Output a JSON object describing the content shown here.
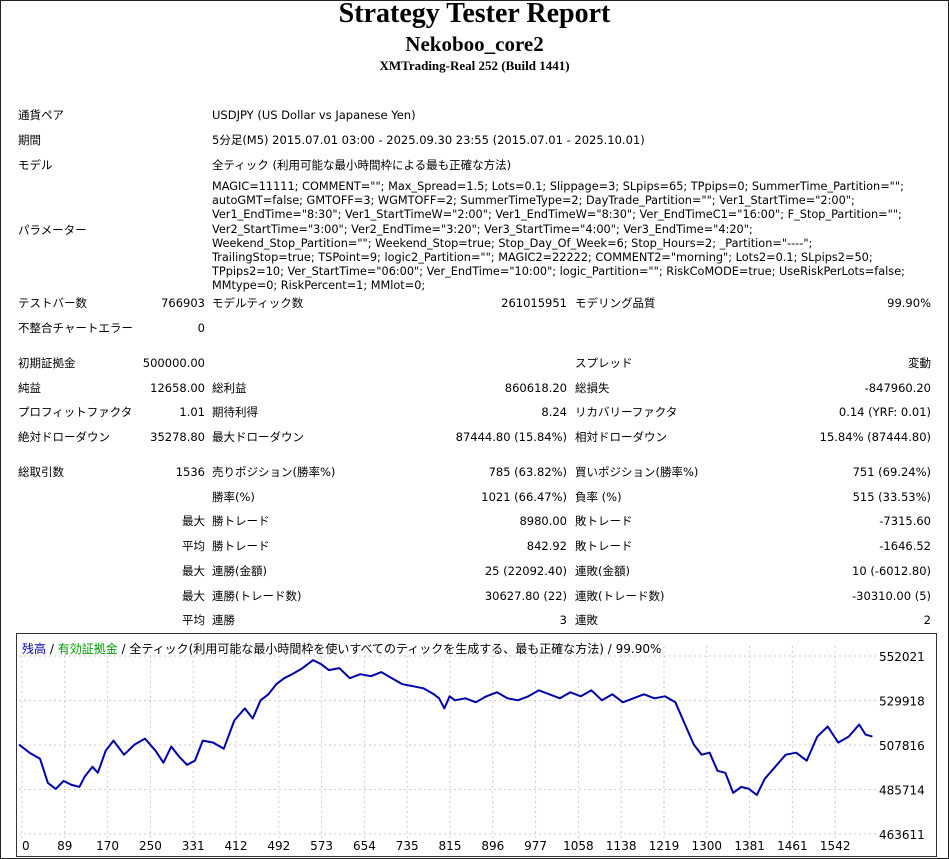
{
  "header": {
    "title": "Strategy Tester Report",
    "ea_name": "Nekoboo_core2",
    "server": "XMTrading-Real 252 (Build 1441)"
  },
  "info": {
    "symbol_label": "通貨ペア",
    "symbol_value": "USDJPY (US Dollar vs Japanese Yen)",
    "period_label": "期間",
    "period_value": "5分足(M5) 2015.07.01 03:00 - 2025.09.30 23:55 (2015.07.01 - 2025.10.01)",
    "model_label": "モデル",
    "model_value": "全ティック (利用可能な最小時間枠による最も正確な方法)",
    "params_label": "パラメーター",
    "params_value": "MAGIC=11111; COMMENT=\"\"; Max_Spread=1.5; Lots=0.1; Slippage=3; SLpips=65; TPpips=0; SummerTime_Partition=\"\"; autoGMT=false; GMTOFF=3; WGMTOFF=2; SummerTimeType=2; DayTrade_Partition=\"\"; Ver1_StartTime=\"2:00\"; Ver1_EndTime=\"8:30\"; Ver1_StartTimeW=\"2:00\"; Ver1_EndTimeW=\"8:30\"; Ver_EndTimeC1=\"16:00\"; F_Stop_Partition=\"\"; Ver2_StartTime=\"3:00\"; Ver2_EndTime=\"3:20\"; Ver3_StartTime=\"4:00\"; Ver3_EndTime=\"4:20\"; Weekend_Stop_Partition=\"\"; Weekend_Stop=true; Stop_Day_Of_Week=6; Stop_Hours=2; _Partition=\"----\"; TrailingStop=true; TSPoint=9; logic2_Partition=\"\"; MAGIC2=22222; COMMENT2=\"morning\"; Lots2=0.1; SLpips2=50; TPpips2=10; Ver_StartTime=\"06:00\"; Ver_EndTime=\"10:00\"; logic_Partition=\"\"; RiskCoMODE=true; UseRiskPerLots=false; MMtype=0; RiskPercent=1; MMlot=0;"
  },
  "stats": {
    "bars_label": "テストバー数",
    "bars_value": "766903",
    "ticks_label": "モデルティック数",
    "ticks_value": "261015951",
    "quality_label": "モデリング品質",
    "quality_value": "99.90%",
    "mismatch_label": "不整合チャートエラー",
    "mismatch_value": "0",
    "deposit_label": "初期証拠金",
    "deposit_value": "500000.00",
    "spread_label": "スプレッド",
    "spread_value": "変動",
    "net_label": "純益",
    "net_value": "12658.00",
    "gross_profit_label": "総利益",
    "gross_profit_value": "860618.20",
    "gross_loss_label": "総損失",
    "gross_loss_value": "-847960.20",
    "pf_label": "プロフィットファクタ",
    "pf_value": "1.01",
    "expected_label": "期待利得",
    "expected_value": "8.24",
    "recovery_label": "リカバリーファクタ",
    "recovery_value": "0.14 (YRF: 0.01)",
    "abs_dd_label": "絶対ドローダウン",
    "abs_dd_value": "35278.80",
    "max_dd_label": "最大ドローダウン",
    "max_dd_value": "87444.80 (15.84%)",
    "rel_dd_label": "相対ドローダウン",
    "rel_dd_value": "15.84% (87444.80)",
    "total_trades_label": "総取引数",
    "total_trades_value": "1536",
    "short_label": "売りポジション(勝率%)",
    "short_value": "785 (63.82%)",
    "long_label": "買いポジション(勝率%)",
    "long_value": "751 (69.24%)",
    "win_rate_label": "勝率(%)",
    "win_rate_value": "1021 (66.47%)",
    "loss_rate_label": "負率 (%)",
    "loss_rate_value": "515 (33.53%)",
    "max_prefix": "最大",
    "avg_prefix": "平均",
    "largest_win_label": "勝トレード",
    "largest_win_value": "8980.00",
    "largest_loss_label": "敗トレード",
    "largest_loss_value": "-7315.60",
    "avg_win_label": "勝トレード",
    "avg_win_value": "842.92",
    "avg_loss_label": "敗トレード",
    "avg_loss_value": "-1646.52",
    "max_cons_wins_label": "連勝(金額)",
    "max_cons_wins_value": "25 (22092.40)",
    "max_cons_losses_label": "連敗(金額)",
    "max_cons_losses_value": "10 (-6012.80)",
    "max_cons_profit_label": "連勝(トレード数)",
    "max_cons_profit_value": "30627.80 (22)",
    "max_cons_loss_label": "連敗(トレード数)",
    "max_cons_loss_value": "-30310.00 (5)",
    "avg_cons_wins_label": "連勝",
    "avg_cons_wins_value": "3",
    "avg_cons_losses_label": "連敗",
    "avg_cons_losses_value": "2"
  },
  "chart_legend": {
    "balance": "残高",
    "sep1": " / ",
    "equity": "有効証拠金",
    "sep2": " / ",
    "rest": "全ティック(利用可能な最小時間枠を使いすべてのティックを生成する、最も正確な方法) / 99.90%"
  },
  "colors": {
    "balance": "#0000aa",
    "equity": "#009900",
    "grid": "#cccccc"
  },
  "chart_data": {
    "type": "line",
    "x_ticks": [
      "0",
      "89",
      "170",
      "250",
      "331",
      "412",
      "492",
      "573",
      "654",
      "735",
      "815",
      "896",
      "977",
      "1058",
      "1138",
      "1219",
      "1300",
      "1381",
      "1461",
      "1542"
    ],
    "y_ticks": [
      "552021",
      "529918",
      "507816",
      "485714",
      "463611"
    ],
    "ylim": [
      463611,
      552021
    ],
    "xlim": [
      0,
      1630
    ],
    "series": [
      {
        "name": "残高",
        "x": [
          0,
          20,
          40,
          55,
          70,
          85,
          100,
          115,
          125,
          140,
          150,
          165,
          180,
          200,
          220,
          240,
          260,
          275,
          290,
          305,
          320,
          335,
          350,
          370,
          390,
          410,
          430,
          445,
          460,
          475,
          490,
          505,
          520,
          540,
          560,
          575,
          590,
          610,
          630,
          650,
          670,
          690,
          710,
          730,
          750,
          770,
          790,
          800,
          810,
          820,
          830,
          850,
          870,
          890,
          910,
          930,
          950,
          970,
          990,
          1010,
          1030,
          1050,
          1070,
          1090,
          1110,
          1130,
          1150,
          1170,
          1190,
          1210,
          1230,
          1250,
          1270,
          1285,
          1300,
          1315,
          1330,
          1345,
          1360,
          1375,
          1390,
          1405,
          1420,
          1440,
          1460,
          1480,
          1500,
          1520,
          1540,
          1560,
          1580,
          1600,
          1612,
          1625
        ],
        "y": [
          508000,
          504000,
          501000,
          489000,
          486000,
          490000,
          488000,
          487000,
          492000,
          497000,
          494000,
          505000,
          510000,
          503000,
          508000,
          511000,
          505000,
          499000,
          507000,
          502000,
          498000,
          500000,
          510000,
          509000,
          506000,
          520000,
          526000,
          521000,
          530000,
          533000,
          538000,
          541000,
          543000,
          546000,
          550000,
          548000,
          545000,
          546000,
          541000,
          543000,
          542000,
          544000,
          541000,
          538000,
          537000,
          536000,
          533000,
          531000,
          526000,
          532000,
          530000,
          531000,
          529000,
          532000,
          534000,
          531000,
          530000,
          532000,
          535000,
          533000,
          531000,
          534000,
          532000,
          535000,
          530000,
          533000,
          529000,
          531000,
          533000,
          531000,
          532000,
          529000,
          517000,
          508000,
          503000,
          504000,
          495000,
          494000,
          484000,
          487000,
          486000,
          483000,
          491000,
          497000,
          503000,
          504000,
          500000,
          512000,
          517000,
          509000,
          512000,
          518000,
          513000,
          512000
        ]
      }
    ]
  }
}
